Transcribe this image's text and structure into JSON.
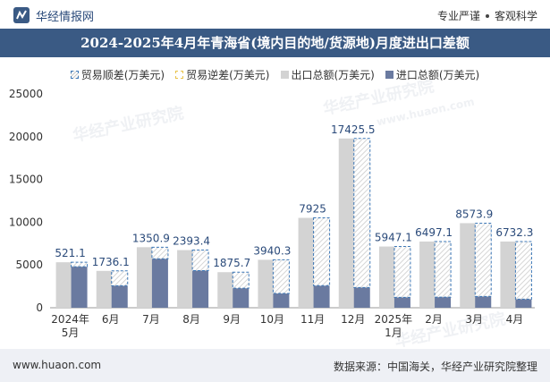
{
  "header": {
    "brand": "华经情报网",
    "tag1": "专业严谨",
    "tag2": "客观科学"
  },
  "colors": {
    "title_bg": "#3a5a84",
    "export_bar": "#d3d3d3",
    "import_bar": "#6a7aa0",
    "surplus_border": "#3e79b8",
    "deficit_border": "#e8c24a",
    "footer_bg": "#eef0f5"
  },
  "watermark": {
    "text": "华经产业研究院",
    "url": "www.huaon.com"
  },
  "footer": {
    "site": "www.huaon.com",
    "source": "数据来源：中国海关，华经产业研究院整理"
  },
  "chart_data": {
    "type": "bar",
    "title": "2024-2025年4月年青海省(境内目的地/货源地)月度进出口差额",
    "legend": [
      "贸易顺差(万美元)",
      "贸易逆差(万美元)",
      "出口总额(万美元)",
      "进口总额(万美元)"
    ],
    "categories": [
      "2024年\n5月",
      "6月",
      "7月",
      "8月",
      "9月",
      "10月",
      "11月",
      "12月",
      "2025年\n1月",
      "2月",
      "3月",
      "4月"
    ],
    "series": [
      {
        "name": "出口总额(万美元)",
        "values": [
          5320,
          4310,
          7080,
          6740,
          4160,
          5610,
          10510,
          19790,
          7160,
          7740,
          9890,
          7740
        ]
      },
      {
        "name": "进口总额(万美元)",
        "values": [
          4799,
          2574,
          5729,
          4347,
          2284,
          1670,
          2585,
          2364,
          1213,
          1243,
          1316,
          1008
        ]
      },
      {
        "name": "贸易顺差(万美元)",
        "values": [
          521.1,
          1736.1,
          1350.9,
          2393.4,
          1875.7,
          3940.3,
          7925,
          17425.5,
          5947.1,
          6497.1,
          8573.9,
          6732.3
        ]
      }
    ],
    "ylim": [
      0,
      25000
    ],
    "yticks": [
      0,
      5000,
      10000,
      15000,
      20000,
      25000
    ],
    "xlabel": "",
    "ylabel": ""
  }
}
